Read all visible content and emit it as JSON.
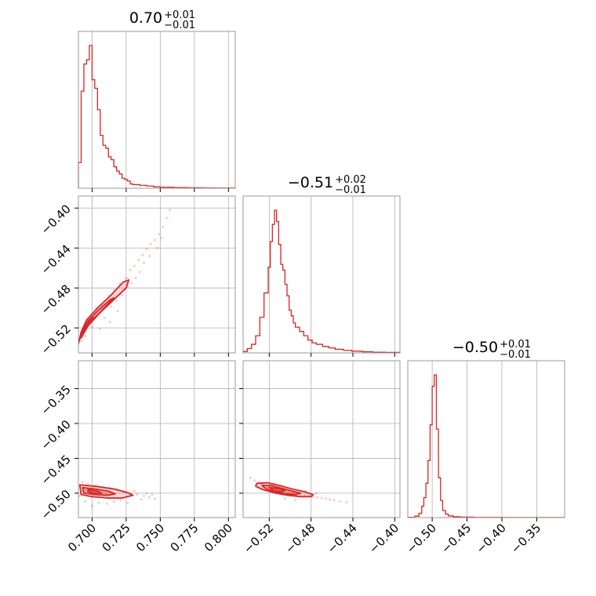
{
  "chart_data": {
    "type": "corner",
    "color": "#d62728",
    "panel_border_color": "#999999",
    "grid_color": "#b0b0b0",
    "grid": true,
    "parameters": [
      {
        "title_main": "0.70",
        "title_plus": "+0.01",
        "title_minus": "−0.01",
        "range": [
          0.69,
          0.805
        ],
        "ticks": [
          0.7,
          0.725,
          0.75,
          0.775,
          0.8
        ],
        "tick_labels": [
          "0.700",
          "0.725",
          "0.750",
          "0.775",
          "0.800"
        ]
      },
      {
        "title_main": "−0.51",
        "title_plus": "+0.02",
        "title_minus": "−0.01",
        "range": [
          -0.545,
          -0.395
        ],
        "ticks": [
          -0.52,
          -0.48,
          -0.44,
          -0.4
        ],
        "tick_labels": [
          "−0.52",
          "−0.48",
          "−0.44",
          "−0.40"
        ]
      },
      {
        "title_main": "−0.50",
        "title_plus": "+0.01",
        "title_minus": "−0.01",
        "range": [
          -0.535,
          -0.31
        ],
        "ticks": [
          -0.5,
          -0.45,
          -0.4,
          -0.35
        ],
        "tick_labels": [
          "−0.50",
          "−0.45",
          "−0.40",
          "−0.35"
        ]
      }
    ],
    "histograms": [
      {
        "bins": [
          0.69,
          0.692,
          0.694,
          0.696,
          0.698,
          0.7,
          0.702,
          0.704,
          0.706,
          0.708,
          0.71,
          0.712,
          0.714,
          0.716,
          0.718,
          0.72,
          0.722,
          0.724,
          0.726,
          0.728,
          0.73,
          0.735,
          0.74,
          0.745,
          0.75,
          0.76,
          0.77,
          0.78,
          0.79,
          0.805
        ],
        "counts": [
          0.18,
          0.68,
          0.87,
          0.9,
          1.0,
          0.76,
          0.7,
          0.55,
          0.37,
          0.3,
          0.28,
          0.22,
          0.2,
          0.15,
          0.12,
          0.1,
          0.07,
          0.06,
          0.05,
          0.03,
          0.025,
          0.02,
          0.015,
          0.01,
          0.007,
          0.005,
          0.003,
          0.002,
          0.001
        ]
      },
      {
        "bins": [
          -0.545,
          -0.541,
          -0.537,
          -0.533,
          -0.529,
          -0.525,
          -0.521,
          -0.519,
          -0.517,
          -0.515,
          -0.513,
          -0.511,
          -0.509,
          -0.507,
          -0.505,
          -0.503,
          -0.501,
          -0.499,
          -0.497,
          -0.495,
          -0.491,
          -0.487,
          -0.483,
          -0.479,
          -0.475,
          -0.469,
          -0.463,
          -0.457,
          -0.449,
          -0.441,
          -0.431,
          -0.421,
          -0.409,
          -0.395
        ],
        "counts": [
          0.01,
          0.03,
          0.06,
          0.12,
          0.25,
          0.42,
          0.6,
          0.78,
          0.9,
          1.0,
          0.92,
          0.76,
          0.62,
          0.58,
          0.48,
          0.4,
          0.3,
          0.26,
          0.21,
          0.18,
          0.15,
          0.12,
          0.09,
          0.07,
          0.06,
          0.045,
          0.035,
          0.025,
          0.018,
          0.012,
          0.008,
          0.005,
          0.003
        ]
      },
      {
        "bins": [
          -0.535,
          -0.525,
          -0.519,
          -0.515,
          -0.512,
          -0.509,
          -0.506,
          -0.503,
          -0.5,
          -0.497,
          -0.494,
          -0.491,
          -0.488,
          -0.485,
          -0.481,
          -0.477,
          -0.47,
          -0.46,
          -0.44,
          -0.4,
          -0.31
        ],
        "counts": [
          0.002,
          0.01,
          0.03,
          0.08,
          0.14,
          0.24,
          0.4,
          0.65,
          0.92,
          1.0,
          0.62,
          0.28,
          0.12,
          0.05,
          0.025,
          0.012,
          0.006,
          0.003,
          0.001,
          0.0005
        ]
      }
    ],
    "pairs": [
      {
        "x_param": 0,
        "y_param": 1,
        "y_range": [
          -0.545,
          -0.388
        ],
        "scatter": [
          [
            0.703,
            -0.5
          ],
          [
            0.707,
            -0.497
          ],
          [
            0.712,
            -0.488
          ],
          [
            0.716,
            -0.482
          ],
          [
            0.72,
            -0.476
          ],
          [
            0.725,
            -0.47
          ],
          [
            0.728,
            -0.462
          ],
          [
            0.731,
            -0.458
          ],
          [
            0.734,
            -0.452
          ],
          [
            0.737,
            -0.447
          ],
          [
            0.74,
            -0.441
          ],
          [
            0.743,
            -0.436
          ],
          [
            0.746,
            -0.432
          ],
          [
            0.749,
            -0.426
          ],
          [
            0.752,
            -0.419
          ],
          [
            0.755,
            -0.41
          ],
          [
            0.757,
            -0.402
          ],
          [
            0.709,
            -0.51
          ],
          [
            0.714,
            -0.499
          ],
          [
            0.718,
            -0.493
          ],
          [
            0.722,
            -0.487
          ],
          [
            0.726,
            -0.479
          ],
          [
            0.7,
            -0.519
          ],
          [
            0.695,
            -0.528
          ],
          [
            0.692,
            -0.533
          ],
          [
            0.698,
            -0.512
          ],
          [
            0.735,
            -0.464
          ],
          [
            0.742,
            -0.448
          ],
          [
            0.748,
            -0.44
          ],
          [
            0.738,
            -0.455
          ],
          [
            0.732,
            -0.47
          ],
          [
            0.751,
            -0.43
          ],
          [
            0.729,
            -0.475
          ],
          [
            0.719,
            -0.503
          ],
          [
            0.713,
            -0.514
          ],
          [
            0.706,
            -0.521
          ]
        ],
        "levels": [
          [
            [
              0.69,
              -0.536
            ],
            [
              0.692,
              -0.526
            ],
            [
              0.698,
              -0.515
            ],
            [
              0.708,
              -0.502
            ],
            [
              0.718,
              -0.489
            ],
            [
              0.725,
              -0.48
            ],
            [
              0.727,
              -0.472
            ],
            [
              0.723,
              -0.474
            ],
            [
              0.714,
              -0.487
            ],
            [
              0.704,
              -0.5
            ],
            [
              0.696,
              -0.512
            ],
            [
              0.692,
              -0.524
            ],
            [
              0.69,
              -0.536
            ]
          ],
          [
            [
              0.692,
              -0.53
            ],
            [
              0.697,
              -0.518
            ],
            [
              0.705,
              -0.506
            ],
            [
              0.713,
              -0.494
            ],
            [
              0.716,
              -0.49
            ],
            [
              0.713,
              -0.492
            ],
            [
              0.704,
              -0.503
            ],
            [
              0.697,
              -0.513
            ],
            [
              0.693,
              -0.524
            ],
            [
              0.692,
              -0.53
            ]
          ],
          [
            [
              0.693,
              -0.526
            ],
            [
              0.697,
              -0.517
            ],
            [
              0.702,
              -0.51
            ],
            [
              0.7,
              -0.51
            ],
            [
              0.695,
              -0.517
            ],
            [
              0.693,
              -0.526
            ]
          ]
        ]
      },
      {
        "x_param": 0,
        "y_param": 2,
        "y_range": [
          -0.535,
          -0.31
        ],
        "scatter": [
          [
            0.693,
            -0.484
          ],
          [
            0.697,
            -0.487
          ],
          [
            0.703,
            -0.489
          ],
          [
            0.708,
            -0.491
          ],
          [
            0.713,
            -0.492
          ],
          [
            0.718,
            -0.495
          ],
          [
            0.723,
            -0.498
          ],
          [
            0.728,
            -0.501
          ],
          [
            0.733,
            -0.502
          ],
          [
            0.738,
            -0.504
          ],
          [
            0.742,
            -0.506
          ],
          [
            0.746,
            -0.508
          ],
          [
            0.711,
            -0.515
          ],
          [
            0.716,
            -0.512
          ],
          [
            0.721,
            -0.51
          ],
          [
            0.726,
            -0.514
          ],
          [
            0.731,
            -0.497
          ],
          [
            0.736,
            -0.509
          ],
          [
            0.7,
            -0.518
          ],
          [
            0.705,
            -0.514
          ],
          [
            0.74,
            -0.5
          ],
          [
            0.744,
            -0.502
          ],
          [
            0.691,
            -0.504
          ],
          [
            0.695,
            -0.512
          ]
        ],
        "levels": [
          [
            [
              0.691,
              -0.488
            ],
            [
              0.702,
              -0.49
            ],
            [
              0.716,
              -0.494
            ],
            [
              0.726,
              -0.499
            ],
            [
              0.73,
              -0.503
            ],
            [
              0.722,
              -0.507
            ],
            [
              0.712,
              -0.507
            ],
            [
              0.7,
              -0.505
            ],
            [
              0.692,
              -0.502
            ],
            [
              0.691,
              -0.488
            ]
          ],
          [
            [
              0.693,
              -0.492
            ],
            [
              0.702,
              -0.494
            ],
            [
              0.712,
              -0.497
            ],
            [
              0.717,
              -0.501
            ],
            [
              0.712,
              -0.503
            ],
            [
              0.702,
              -0.502
            ],
            [
              0.694,
              -0.5
            ],
            [
              0.693,
              -0.492
            ]
          ],
          [
            [
              0.697,
              -0.495
            ],
            [
              0.704,
              -0.497
            ],
            [
              0.707,
              -0.5
            ],
            [
              0.702,
              -0.5
            ],
            [
              0.697,
              -0.498
            ],
            [
              0.697,
              -0.495
            ]
          ]
        ]
      },
      {
        "x_param": 1,
        "y_param": 2,
        "y_range": [
          -0.535,
          -0.31
        ],
        "scatter": [
          [
            -0.538,
            -0.478
          ],
          [
            -0.534,
            -0.482
          ],
          [
            -0.53,
            -0.484
          ],
          [
            -0.526,
            -0.487
          ],
          [
            -0.522,
            -0.49
          ],
          [
            -0.518,
            -0.492
          ],
          [
            -0.514,
            -0.494
          ],
          [
            -0.51,
            -0.496
          ],
          [
            -0.506,
            -0.497
          ],
          [
            -0.502,
            -0.499
          ],
          [
            -0.498,
            -0.5
          ],
          [
            -0.494,
            -0.501
          ],
          [
            -0.49,
            -0.502
          ],
          [
            -0.486,
            -0.503
          ],
          [
            -0.482,
            -0.504
          ],
          [
            -0.478,
            -0.505
          ],
          [
            -0.474,
            -0.506
          ],
          [
            -0.47,
            -0.507
          ],
          [
            -0.466,
            -0.508
          ],
          [
            -0.462,
            -0.509
          ],
          [
            -0.458,
            -0.51
          ],
          [
            -0.452,
            -0.512
          ],
          [
            -0.446,
            -0.513
          ],
          [
            -0.505,
            -0.508
          ],
          [
            -0.495,
            -0.51
          ],
          [
            -0.485,
            -0.497
          ],
          [
            -0.475,
            -0.5
          ],
          [
            -0.515,
            -0.486
          ]
        ],
        "levels": [
          [
            [
              -0.532,
              -0.486
            ],
            [
              -0.522,
              -0.485
            ],
            [
              -0.51,
              -0.489
            ],
            [
              -0.498,
              -0.494
            ],
            [
              -0.486,
              -0.498
            ],
            [
              -0.478,
              -0.502
            ],
            [
              -0.48,
              -0.505
            ],
            [
              -0.49,
              -0.505
            ],
            [
              -0.502,
              -0.503
            ],
            [
              -0.514,
              -0.5
            ],
            [
              -0.526,
              -0.495
            ],
            [
              -0.533,
              -0.49
            ],
            [
              -0.532,
              -0.486
            ]
          ],
          [
            [
              -0.527,
              -0.489
            ],
            [
              -0.518,
              -0.489
            ],
            [
              -0.508,
              -0.493
            ],
            [
              -0.498,
              -0.497
            ],
            [
              -0.49,
              -0.5
            ],
            [
              -0.494,
              -0.502
            ],
            [
              -0.504,
              -0.501
            ],
            [
              -0.514,
              -0.498
            ],
            [
              -0.523,
              -0.494
            ],
            [
              -0.527,
              -0.489
            ]
          ],
          [
            [
              -0.52,
              -0.492
            ],
            [
              -0.512,
              -0.493
            ],
            [
              -0.505,
              -0.496
            ],
            [
              -0.508,
              -0.498
            ],
            [
              -0.515,
              -0.497
            ],
            [
              -0.52,
              -0.492
            ]
          ]
        ]
      }
    ]
  }
}
